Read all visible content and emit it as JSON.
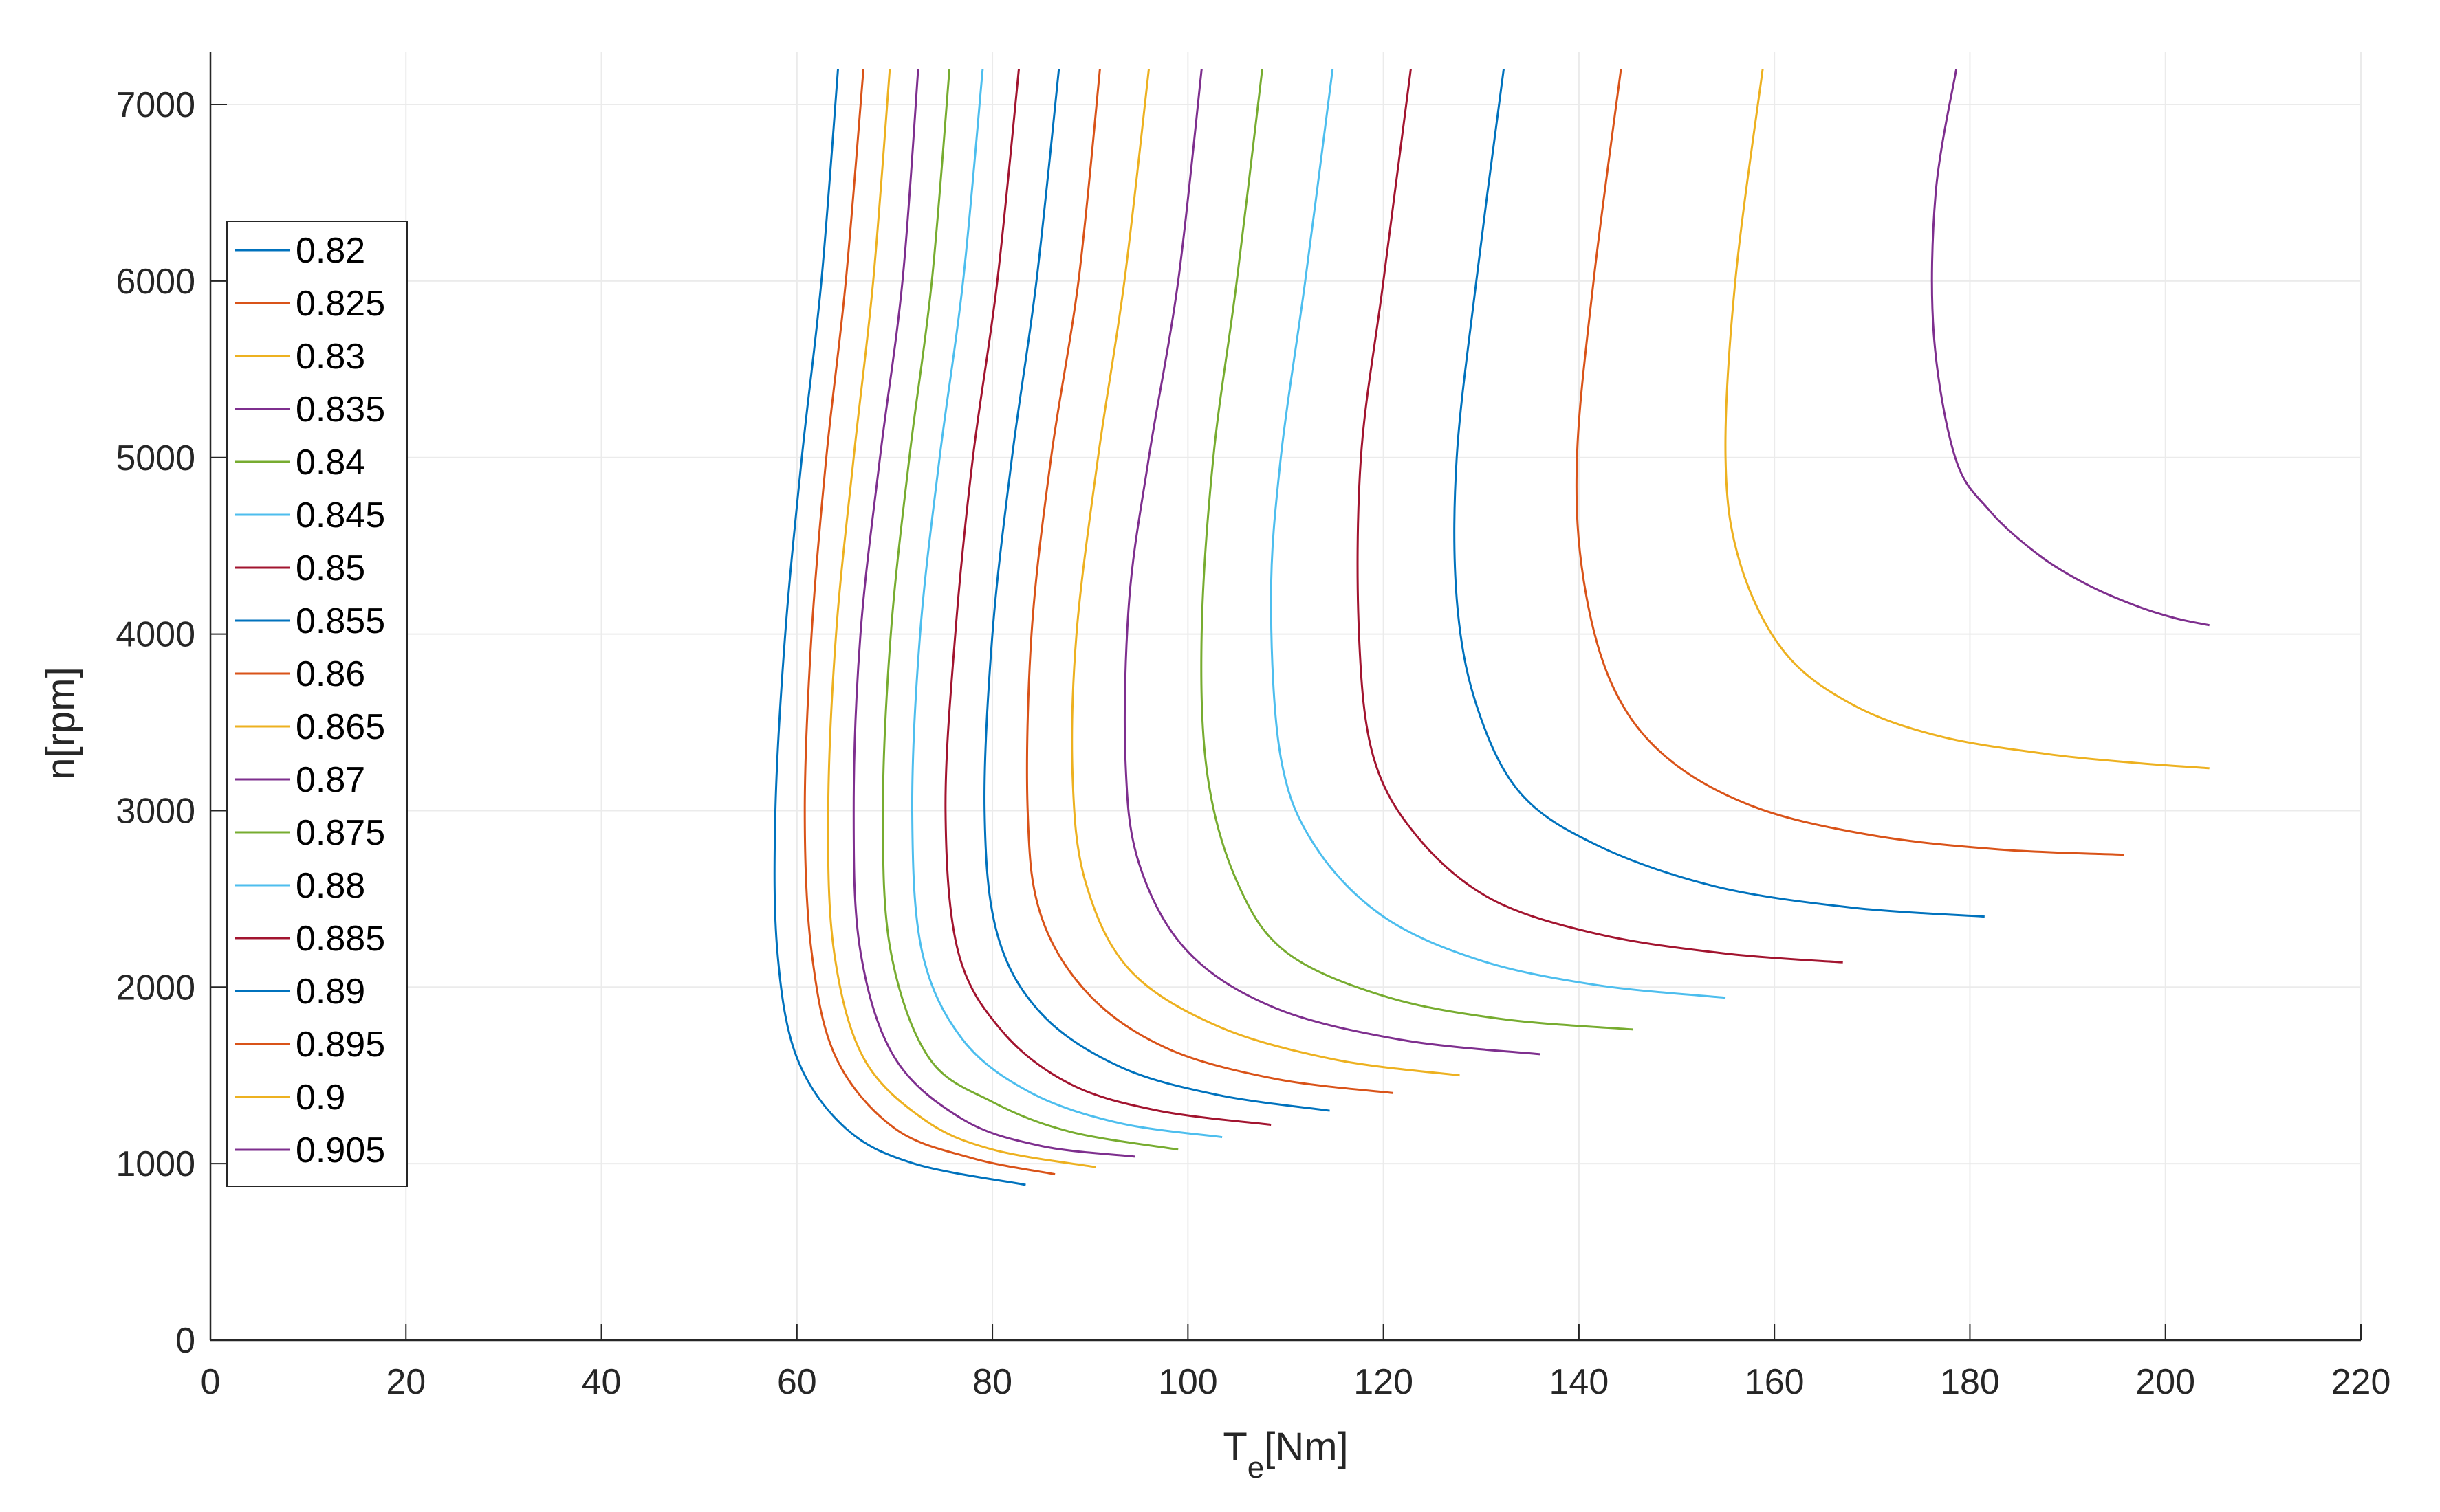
{
  "chart_data": {
    "type": "line",
    "xlabel": {
      "main": "T",
      "sub": "e",
      "rest": "[Nm]"
    },
    "ylabel": "n[rpm]",
    "xlim": [
      0,
      220
    ],
    "ylim": [
      0,
      7300
    ],
    "xticks": [
      "0",
      "20",
      "40",
      "60",
      "80",
      "100",
      "120",
      "140",
      "160",
      "180",
      "200",
      "220"
    ],
    "yticks": [
      "0",
      "1000",
      "2000",
      "3000",
      "4000",
      "5000",
      "6000",
      "7000"
    ],
    "grid": true,
    "legend_position": "left",
    "colors": [
      "#0072BD",
      "#D95319",
      "#EDB120",
      "#7E2F8E",
      "#77AC30",
      "#4DBEEE",
      "#A2142F"
    ],
    "series": [
      {
        "name": "0.82",
        "points": [
          [
            64.2,
            7200
          ],
          [
            62.5,
            6000
          ],
          [
            60.5,
            5000
          ],
          [
            58.8,
            4000
          ],
          [
            57.8,
            3000
          ],
          [
            58.0,
            2200
          ],
          [
            60.0,
            1600
          ],
          [
            65.0,
            1200
          ],
          [
            72.0,
            1000
          ],
          [
            83.4,
            880
          ]
        ]
      },
      {
        "name": "0.825",
        "points": [
          [
            66.8,
            7200
          ],
          [
            65.0,
            6000
          ],
          [
            63.0,
            5000
          ],
          [
            61.5,
            4000
          ],
          [
            60.8,
            3000
          ],
          [
            61.5,
            2200
          ],
          [
            64.0,
            1600
          ],
          [
            70.0,
            1200
          ],
          [
            78.0,
            1030
          ],
          [
            86.4,
            940
          ]
        ]
      },
      {
        "name": "0.83",
        "points": [
          [
            69.5,
            7200
          ],
          [
            67.8,
            6000
          ],
          [
            65.8,
            5000
          ],
          [
            64.0,
            4000
          ],
          [
            63.2,
            3000
          ],
          [
            63.8,
            2200
          ],
          [
            66.8,
            1600
          ],
          [
            73.0,
            1250
          ],
          [
            80.0,
            1080
          ],
          [
            90.6,
            980
          ]
        ]
      },
      {
        "name": "0.835",
        "points": [
          [
            72.4,
            7200
          ],
          [
            70.8,
            6000
          ],
          [
            68.5,
            5000
          ],
          [
            66.5,
            4000
          ],
          [
            65.8,
            3000
          ],
          [
            66.5,
            2200
          ],
          [
            70.0,
            1600
          ],
          [
            77.0,
            1250
          ],
          [
            85.0,
            1100
          ],
          [
            94.6,
            1040
          ]
        ]
      },
      {
        "name": "0.84",
        "points": [
          [
            75.6,
            7200
          ],
          [
            73.8,
            6000
          ],
          [
            71.5,
            5000
          ],
          [
            69.6,
            4000
          ],
          [
            68.8,
            3000
          ],
          [
            69.6,
            2200
          ],
          [
            73.5,
            1600
          ],
          [
            80.0,
            1350
          ],
          [
            88.0,
            1180
          ],
          [
            99.0,
            1080
          ]
        ]
      },
      {
        "name": "0.845",
        "points": [
          [
            79.0,
            7200
          ],
          [
            77.0,
            6000
          ],
          [
            74.6,
            5000
          ],
          [
            72.6,
            4000
          ],
          [
            71.8,
            3000
          ],
          [
            72.8,
            2200
          ],
          [
            77.0,
            1700
          ],
          [
            84.0,
            1400
          ],
          [
            93.0,
            1230
          ],
          [
            103.5,
            1150
          ]
        ]
      },
      {
        "name": "0.85",
        "points": [
          [
            82.7,
            7200
          ],
          [
            80.5,
            6000
          ],
          [
            78.0,
            5000
          ],
          [
            76.2,
            4000
          ],
          [
            75.2,
            3000
          ],
          [
            76.5,
            2200
          ],
          [
            81.0,
            1750
          ],
          [
            88.0,
            1450
          ],
          [
            97.0,
            1300
          ],
          [
            108.5,
            1220
          ]
        ]
      },
      {
        "name": "0.855",
        "points": [
          [
            86.8,
            7200
          ],
          [
            84.5,
            6000
          ],
          [
            82.0,
            5000
          ],
          [
            80.0,
            4000
          ],
          [
            79.2,
            3000
          ],
          [
            80.5,
            2300
          ],
          [
            85.0,
            1850
          ],
          [
            93.0,
            1550
          ],
          [
            103.0,
            1390
          ],
          [
            114.5,
            1300
          ]
        ]
      },
      {
        "name": "0.86",
        "points": [
          [
            91.0,
            7200
          ],
          [
            88.8,
            6000
          ],
          [
            86.0,
            5000
          ],
          [
            84.0,
            4000
          ],
          [
            83.6,
            3000
          ],
          [
            85.0,
            2400
          ],
          [
            90.0,
            1950
          ],
          [
            98.0,
            1650
          ],
          [
            109.0,
            1480
          ],
          [
            121.0,
            1400
          ]
        ]
      },
      {
        "name": "0.865",
        "points": [
          [
            96.0,
            7200
          ],
          [
            93.5,
            6000
          ],
          [
            90.8,
            5000
          ],
          [
            88.6,
            4000
          ],
          [
            88.2,
            3200
          ],
          [
            89.5,
            2600
          ],
          [
            94.0,
            2100
          ],
          [
            103.0,
            1780
          ],
          [
            115.0,
            1590
          ],
          [
            127.8,
            1500
          ]
        ]
      },
      {
        "name": "0.87",
        "points": [
          [
            101.4,
            7200
          ],
          [
            99.0,
            6000
          ],
          [
            96.0,
            5000
          ],
          [
            94.0,
            4200
          ],
          [
            93.6,
            3300
          ],
          [
            95.0,
            2700
          ],
          [
            100.0,
            2200
          ],
          [
            109.0,
            1880
          ],
          [
            122.0,
            1700
          ],
          [
            136.0,
            1620
          ]
        ]
      },
      {
        "name": "0.875",
        "points": [
          [
            107.6,
            7200
          ],
          [
            105.0,
            6000
          ],
          [
            102.6,
            5000
          ],
          [
            101.4,
            4000
          ],
          [
            102.0,
            3200
          ],
          [
            105.0,
            2600
          ],
          [
            110.0,
            2200
          ],
          [
            120.0,
            1950
          ],
          [
            132.0,
            1820
          ],
          [
            145.5,
            1760
          ]
        ]
      },
      {
        "name": "0.88",
        "points": [
          [
            114.8,
            7200
          ],
          [
            112.0,
            6000
          ],
          [
            109.5,
            5000
          ],
          [
            108.5,
            4200
          ],
          [
            109.5,
            3300
          ],
          [
            113.0,
            2800
          ],
          [
            120.0,
            2400
          ],
          [
            130.0,
            2150
          ],
          [
            142.0,
            2010
          ],
          [
            155.0,
            1940
          ]
        ]
      },
      {
        "name": "0.885",
        "points": [
          [
            122.8,
            7200
          ],
          [
            120.0,
            6000
          ],
          [
            117.7,
            5000
          ],
          [
            117.5,
            4000
          ],
          [
            119.0,
            3300
          ],
          [
            123.5,
            2850
          ],
          [
            131.0,
            2500
          ],
          [
            142.0,
            2300
          ],
          [
            155.0,
            2190
          ],
          [
            167.0,
            2140
          ]
        ]
      },
      {
        "name": "0.89",
        "points": [
          [
            132.3,
            7200
          ],
          [
            129.5,
            6000
          ],
          [
            127.5,
            5000
          ],
          [
            127.5,
            4200
          ],
          [
            129.5,
            3600
          ],
          [
            134.0,
            3100
          ],
          [
            142.0,
            2800
          ],
          [
            154.0,
            2570
          ],
          [
            168.0,
            2450
          ],
          [
            181.5,
            2400
          ]
        ]
      },
      {
        "name": "0.895",
        "points": [
          [
            144.3,
            7200
          ],
          [
            141.5,
            6000
          ],
          [
            139.8,
            5000
          ],
          [
            140.5,
            4300
          ],
          [
            143.5,
            3700
          ],
          [
            149.0,
            3300
          ],
          [
            158.0,
            3020
          ],
          [
            170.0,
            2860
          ],
          [
            183.0,
            2780
          ],
          [
            195.8,
            2750
          ]
        ]
      },
      {
        "name": "0.9",
        "points": [
          [
            158.8,
            7200
          ],
          [
            156.0,
            6000
          ],
          [
            155.0,
            5000
          ],
          [
            156.5,
            4400
          ],
          [
            161.0,
            3900
          ],
          [
            168.0,
            3600
          ],
          [
            177.0,
            3420
          ],
          [
            188.0,
            3320
          ],
          [
            197.0,
            3270
          ],
          [
            204.5,
            3240
          ]
        ]
      },
      {
        "name": "0.905",
        "points": [
          [
            178.6,
            7200
          ],
          [
            176.5,
            6500
          ],
          [
            176.3,
            5700
          ],
          [
            178.5,
            5000
          ],
          [
            182.0,
            4700
          ],
          [
            187.0,
            4450
          ],
          [
            192.0,
            4280
          ],
          [
            197.0,
            4160
          ],
          [
            201.0,
            4090
          ],
          [
            204.5,
            4050
          ]
        ]
      }
    ]
  }
}
